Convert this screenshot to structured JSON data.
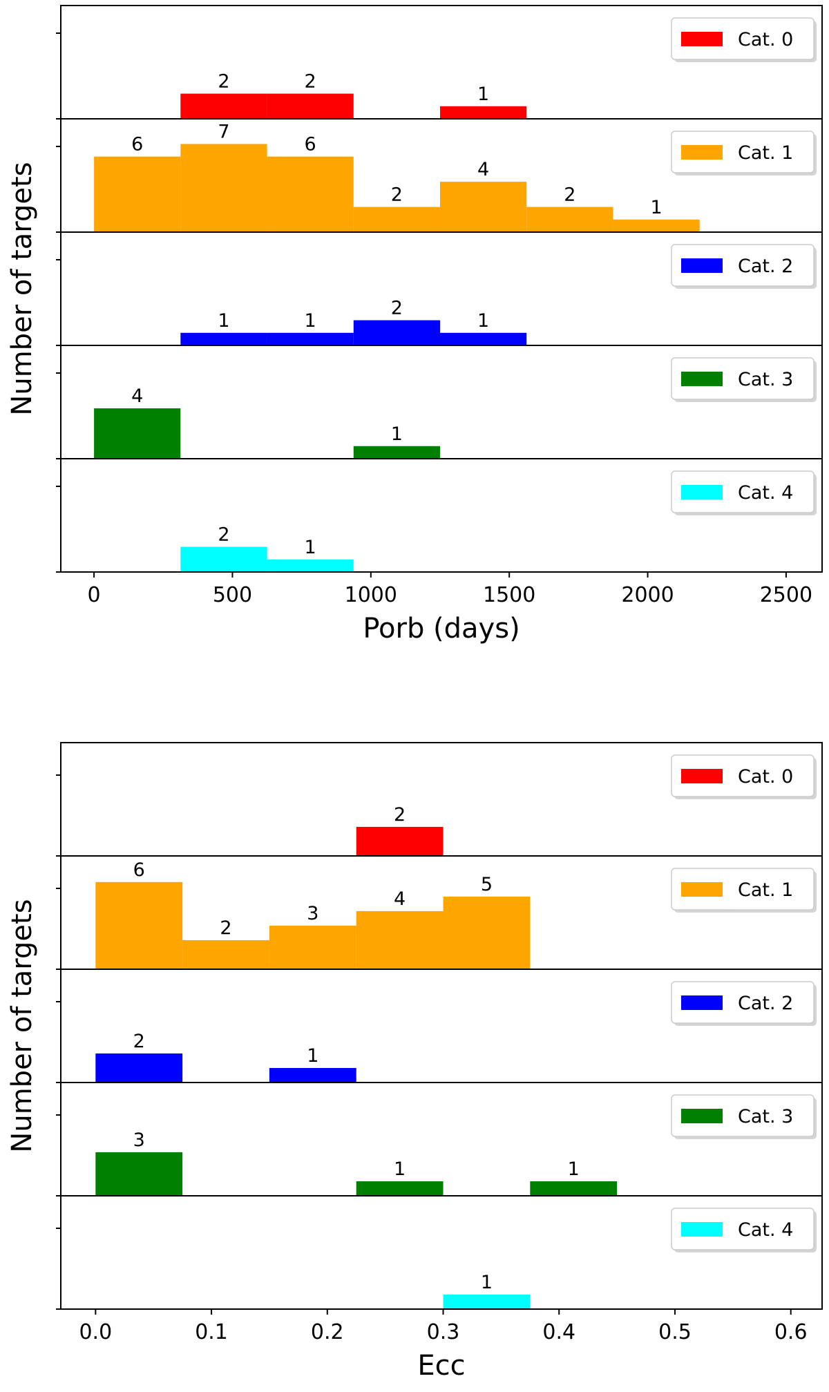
{
  "chart_data": [
    {
      "type": "bar",
      "subtype": "stacked-panel-histogram",
      "xlabel": "Porb (days)",
      "ylabel": "Number of targets",
      "xlim": [
        -120,
        2630
      ],
      "ylim": [
        0,
        9
      ],
      "bin_width": 312.5,
      "x_ticks": [
        0,
        500,
        1000,
        1500,
        2000,
        2500
      ],
      "x_tick_labels": [
        "0",
        "500",
        "1000",
        "1500",
        "2000",
        "2500"
      ],
      "legend_position": "top-right",
      "panels": [
        {
          "name": "Cat. 0",
          "color": "#ff0000",
          "bins": [
            {
              "x0": 312.5,
              "value": 2
            },
            {
              "x0": 625,
              "value": 2
            },
            {
              "x0": 1250,
              "value": 1
            }
          ]
        },
        {
          "name": "Cat. 1",
          "color": "#ffa500",
          "bins": [
            {
              "x0": 0,
              "value": 6
            },
            {
              "x0": 312.5,
              "value": 7
            },
            {
              "x0": 625,
              "value": 6
            },
            {
              "x0": 937.5,
              "value": 2
            },
            {
              "x0": 1250,
              "value": 4
            },
            {
              "x0": 1562.5,
              "value": 2
            },
            {
              "x0": 1875,
              "value": 1
            }
          ]
        },
        {
          "name": "Cat. 2",
          "color": "#0000ff",
          "bins": [
            {
              "x0": 312.5,
              "value": 1
            },
            {
              "x0": 625,
              "value": 1
            },
            {
              "x0": 937.5,
              "value": 2
            },
            {
              "x0": 1250,
              "value": 1
            }
          ]
        },
        {
          "name": "Cat. 3",
          "color": "#008000",
          "bins": [
            {
              "x0": 0,
              "value": 4
            },
            {
              "x0": 937.5,
              "value": 1
            }
          ]
        },
        {
          "name": "Cat. 4",
          "color": "#00ffff",
          "bins": [
            {
              "x0": 312.5,
              "value": 2
            },
            {
              "x0": 625,
              "value": 1
            }
          ]
        }
      ]
    },
    {
      "type": "bar",
      "subtype": "stacked-panel-histogram",
      "xlabel": "Ecc",
      "ylabel": "Number of targets",
      "xlim": [
        -0.03,
        0.627
      ],
      "ylim": [
        0,
        7.8
      ],
      "bin_width": 0.075,
      "x_ticks": [
        0.0,
        0.1,
        0.2,
        0.3,
        0.4,
        0.5,
        0.6
      ],
      "x_tick_labels": [
        "0.0",
        "0.1",
        "0.2",
        "0.3",
        "0.4",
        "0.5",
        "0.6"
      ],
      "legend_position": "top-right",
      "panels": [
        {
          "name": "Cat. 0",
          "color": "#ff0000",
          "bins": [
            {
              "x0": 0.225,
              "value": 2
            }
          ]
        },
        {
          "name": "Cat. 1",
          "color": "#ffa500",
          "bins": [
            {
              "x0": 0.0,
              "value": 6
            },
            {
              "x0": 0.075,
              "value": 2
            },
            {
              "x0": 0.15,
              "value": 3
            },
            {
              "x0": 0.225,
              "value": 4
            },
            {
              "x0": 0.3,
              "value": 5
            }
          ]
        },
        {
          "name": "Cat. 2",
          "color": "#0000ff",
          "bins": [
            {
              "x0": 0.0,
              "value": 2
            },
            {
              "x0": 0.15,
              "value": 1
            }
          ]
        },
        {
          "name": "Cat. 3",
          "color": "#008000",
          "bins": [
            {
              "x0": 0.0,
              "value": 3
            },
            {
              "x0": 0.225,
              "value": 1
            },
            {
              "x0": 0.375,
              "value": 1
            }
          ]
        },
        {
          "name": "Cat. 4",
          "color": "#00ffff",
          "bins": [
            {
              "x0": 0.3,
              "value": 1
            }
          ]
        }
      ]
    }
  ]
}
